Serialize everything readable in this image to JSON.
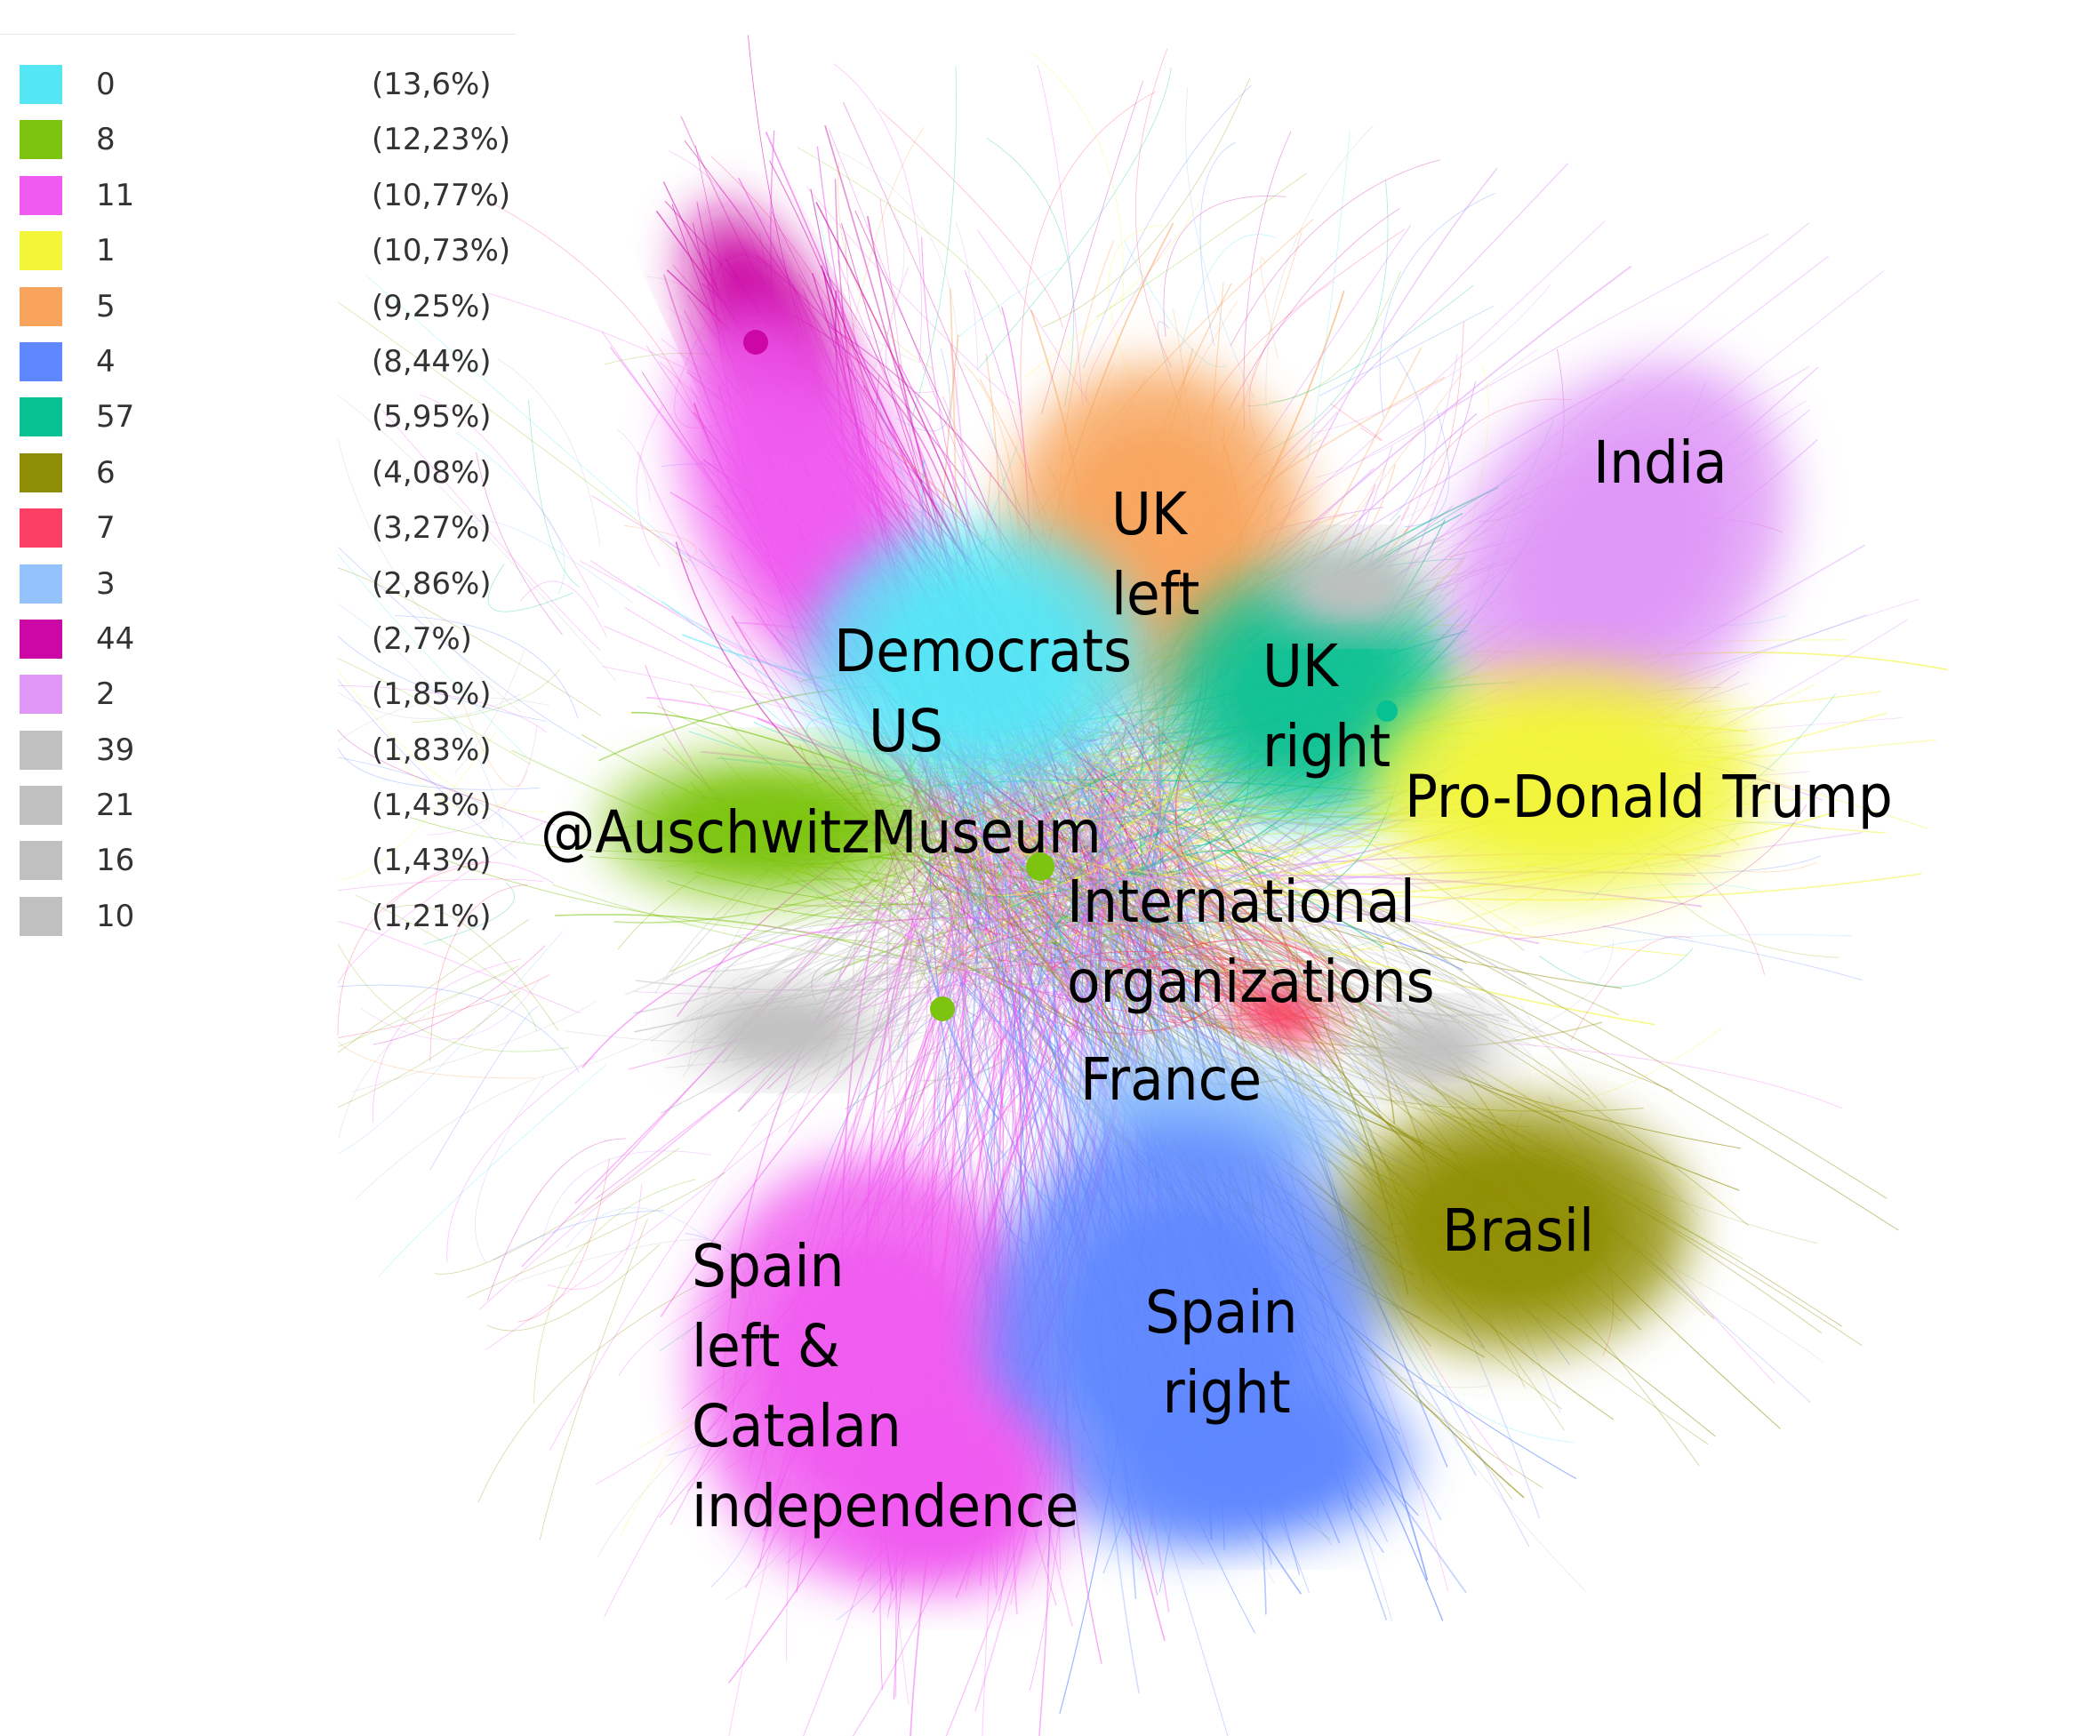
{
  "legend": [
    {
      "id": "0",
      "percent": "(13,6%)",
      "color": "#55e6f6"
    },
    {
      "id": "8",
      "percent": "(12,23%)",
      "color": "#7cc40f"
    },
    {
      "id": "11",
      "percent": "(10,77%)",
      "color": "#f05af0"
    },
    {
      "id": "1",
      "percent": "(10,73%)",
      "color": "#f2f538"
    },
    {
      "id": "5",
      "percent": "(9,25%)",
      "color": "#f8a45c"
    },
    {
      "id": "4",
      "percent": "(8,44%)",
      "color": "#5f87ff"
    },
    {
      "id": "57",
      "percent": "(5,95%)",
      "color": "#07c193"
    },
    {
      "id": "6",
      "percent": "(4,08%)",
      "color": "#8f8d06"
    },
    {
      "id": "7",
      "percent": "(3,27%)",
      "color": "#fb3f64"
    },
    {
      "id": "3",
      "percent": "(2,86%)",
      "color": "#93c2fd"
    },
    {
      "id": "44",
      "percent": "(2,7%)",
      "color": "#cc07a6"
    },
    {
      "id": "2",
      "percent": "(1,85%)",
      "color": "#df96f7"
    },
    {
      "id": "39",
      "percent": "(1,83%)",
      "color": "#c0c0c0"
    },
    {
      "id": "21",
      "percent": "(1,43%)",
      "color": "#c0c0c0"
    },
    {
      "id": "16",
      "percent": "(1,43%)",
      "color": "#c0c0c0"
    },
    {
      "id": "10",
      "percent": "(1,21%)",
      "color": "#c0c0c0"
    }
  ],
  "labels": {
    "india": "India",
    "uk_left": "UK\nleft",
    "democrats_us": "Democrats\n  US",
    "uk_right": "UK\nright",
    "pro_trump": "Pro-Donald Trump",
    "auschwitz": "@AuschwitzMuseum",
    "international": "International\norganizations",
    "france": "France",
    "brasil": "Brasil",
    "spain_left": "Spain\nleft &\nCatalan\nindependence",
    "spain_right": "Spain\n right"
  }
}
